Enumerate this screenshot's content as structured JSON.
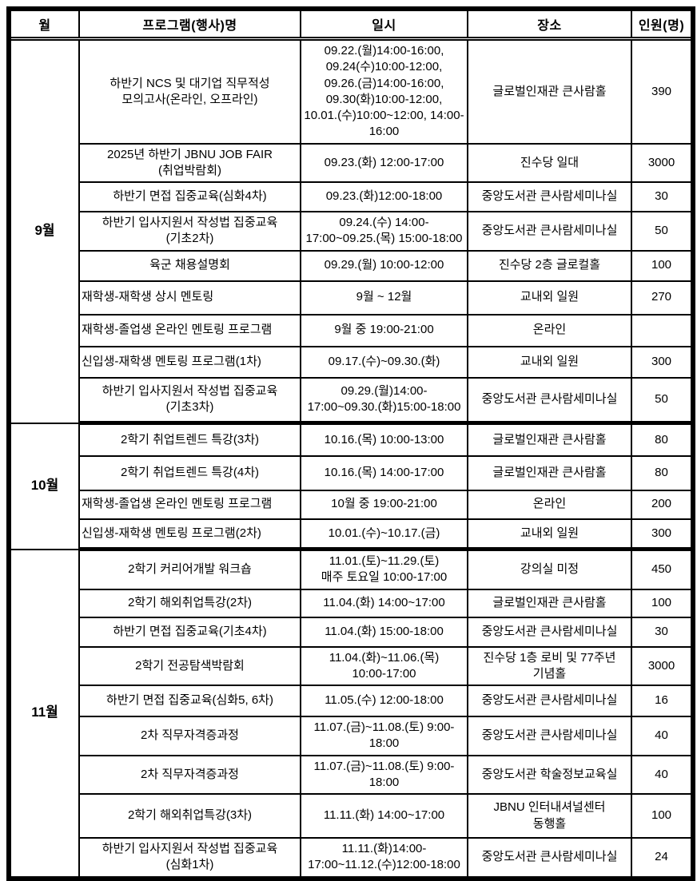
{
  "colors": {
    "border": "#000000",
    "text": "#000000",
    "background": "#ffffff"
  },
  "table": {
    "headers": [
      "월",
      "프로그램(행사)명",
      "일시",
      "장소",
      "인원(명)"
    ],
    "sections": [
      {
        "month": "9월",
        "rows": [
          {
            "name": [
              "하반기 NCS 및 대기업 직무적성",
              "모의고사(온라인, 오프라인)"
            ],
            "date": [
              "09.22.(월)14:00-16:00,",
              "09.24(수)10:00-12:00,",
              "09.26.(금)14:00-16:00,",
              "09.30(화)10:00-12:00,",
              "10.01.(수)10:00~12:00, 14:00-",
              "16:00"
            ],
            "venue": [
              "글로벌인재관 큰사람홀"
            ],
            "count": "390"
          },
          {
            "name": [
              "2025년 하반기 JBNU JOB FAIR",
              "(취업박람회)"
            ],
            "date": [
              "09.23.(화) 12:00-17:00"
            ],
            "venue": [
              "진수당 일대"
            ],
            "count": "3000"
          },
          {
            "name": [
              "하반기 면접 집중교육(심화4차)"
            ],
            "date": [
              "09.23.(화)12:00-18:00"
            ],
            "venue": [
              "중앙도서관 큰사람세미나실"
            ],
            "count": "30"
          },
          {
            "name": [
              "하반기 입사지원서 작성법 집중교육",
              "(기초2차)"
            ],
            "date": [
              "09.24.(수) 14:00-",
              "17:00~09.25.(목) 15:00-18:00"
            ],
            "venue": [
              "중앙도서관 큰사람세미나실"
            ],
            "count": "50"
          },
          {
            "name": [
              "육군 채용설명회"
            ],
            "date": [
              "09.29.(월) 10:00-12:00"
            ],
            "venue": [
              "진수당 2층 글로컬홀"
            ],
            "count": "100"
          },
          {
            "name": [
              "재학생-재학생 상시 멘토링"
            ],
            "align": "left",
            "date": [
              "9월 ~ 12월"
            ],
            "venue": [
              "교내외 일원"
            ],
            "count": "270"
          },
          {
            "name": [
              "재학생-졸업생 온라인 멘토링 프로그램"
            ],
            "align": "left",
            "date": [
              "9월 중 19:00-21:00"
            ],
            "venue": [
              "온라인"
            ],
            "count": ""
          },
          {
            "name": [
              "신입생-재학생 멘토링 프로그램(1차)"
            ],
            "align": "left",
            "date": [
              "09.17.(수)~09.30.(화)"
            ],
            "venue": [
              "교내외 일원"
            ],
            "count": "300"
          },
          {
            "name": [
              "하반기 입사지원서 작성법 집중교육",
              "(기초3차)"
            ],
            "date": [
              "09.29.(월)14:00-",
              "17:00~09.30.(화)15:00-18:00"
            ],
            "venue": [
              "중앙도서관 큰사람세미나실"
            ],
            "count": "50"
          }
        ]
      },
      {
        "month": "10월",
        "rows": [
          {
            "name": [
              "2학기 취업트렌드 특강(3차)"
            ],
            "date": [
              "10.16.(목) 10:00-13:00"
            ],
            "venue": [
              "글로벌인재관 큰사람홀"
            ],
            "count": "80"
          },
          {
            "name": [
              "2학기 취업트렌드 특강(4차)"
            ],
            "date": [
              "10.16.(목) 14:00-17:00"
            ],
            "venue": [
              "글로벌인재관 큰사람홀"
            ],
            "count": "80"
          },
          {
            "name": [
              "재학생-졸업생 온라인 멘토링 프로그램"
            ],
            "align": "left",
            "date": [
              "10월 중 19:00-21:00"
            ],
            "venue": [
              "온라인"
            ],
            "count": "200"
          },
          {
            "name": [
              "신입생-재학생 멘토링 프로그램(2차)"
            ],
            "align": "left",
            "date": [
              "10.01.(수)~10.17.(금)"
            ],
            "venue": [
              "교내외 일원"
            ],
            "count": "300"
          }
        ]
      },
      {
        "month": "11월",
        "rows": [
          {
            "name": [
              "2학기 커리어개발 워크숍"
            ],
            "date": [
              "11.01.(토)~11.29.(토)",
              "매주 토요일 10:00-17:00"
            ],
            "venue": [
              "강의실 미정"
            ],
            "count": "450"
          },
          {
            "name": [
              "2학기 해외취업특강(2차)"
            ],
            "date": [
              "11.04.(화) 14:00~17:00"
            ],
            "venue": [
              "글로벌인재관 큰사람홀"
            ],
            "count": "100"
          },
          {
            "name": [
              "하반기 면접 집중교육(기초4차)"
            ],
            "date": [
              "11.04.(화) 15:00-18:00"
            ],
            "venue": [
              "중앙도서관 큰사람세미나실"
            ],
            "count": "30"
          },
          {
            "name": [
              "2학기 전공탐색박람회"
            ],
            "date": [
              "11.04.(화)~11.06.(목)",
              "10:00-17:00"
            ],
            "venue": [
              "진수당 1층 로비 및 77주년",
              "기념홀"
            ],
            "count": "3000"
          },
          {
            "name": [
              "하반기 면접 집중교육(심화5, 6차)"
            ],
            "date": [
              "11.05.(수) 12:00-18:00"
            ],
            "venue": [
              "중앙도서관 큰사람세미나실"
            ],
            "count": "16"
          },
          {
            "name": [
              "2차 직무자격증과정"
            ],
            "date": [
              "11.07.(금)~11.08.(토) 9:00-",
              "18:00"
            ],
            "venue": [
              "중앙도서관 큰사람세미나실"
            ],
            "count": "40"
          },
          {
            "name": [
              "2차 직무자격증과정"
            ],
            "date": [
              "11.07.(금)~11.08.(토) 9:00-",
              "18:00"
            ],
            "venue": [
              "중앙도서관 학술정보교육실"
            ],
            "count": "40"
          },
          {
            "name": [
              "2학기 해외취업특강(3차)"
            ],
            "date": [
              "11.11.(화) 14:00~17:00"
            ],
            "venue": [
              "JBNU 인터내셔널센터",
              "동행홀"
            ],
            "count": "100"
          },
          {
            "name": [
              "하반기 입사지원서 작성법 집중교육",
              "(심화1차)"
            ],
            "date": [
              "11.11.(화)14:00-",
              "17:00~11.12.(수)12:00-18:00"
            ],
            "venue": [
              "중앙도서관 큰사람세미나실"
            ],
            "count": "24"
          }
        ]
      }
    ]
  }
}
